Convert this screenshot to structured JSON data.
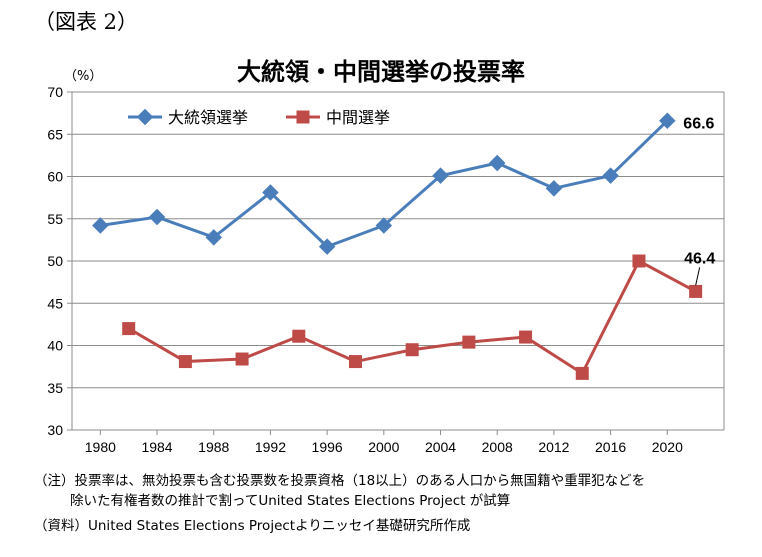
{
  "figure_label": "（図表 2）",
  "notes": {
    "line1": "（注）投票率は、無効投票も含む投票数を投票資格（18以上）のある人口から無国籍や重罪犯などを",
    "line2": "除いた有権者数の推計で割ってUnited States Elections Project が試算",
    "source": "（資料）United States Elections Projectよりニッセイ基礎研究所作成"
  },
  "chart_data": {
    "type": "line",
    "title": "大統領・中間選挙の投票率",
    "ylabel": "（%）",
    "xlabel": "",
    "xlim": [
      1978,
      2024
    ],
    "ylim": [
      30,
      70
    ],
    "x_ticks": [
      1980,
      1984,
      1988,
      1992,
      1996,
      2000,
      2004,
      2008,
      2012,
      2016,
      2020
    ],
    "y_ticks": [
      30,
      35,
      40,
      45,
      50,
      55,
      60,
      65,
      70
    ],
    "grid": true,
    "legend_position": "top-left",
    "series": [
      {
        "name": "大統領選挙",
        "color": "#4a7ebb",
        "marker": "diamond",
        "x": [
          1980,
          1984,
          1988,
          1992,
          1996,
          2000,
          2004,
          2008,
          2012,
          2016,
          2020
        ],
        "values": [
          54.2,
          55.2,
          52.8,
          58.1,
          51.7,
          54.2,
          60.1,
          61.6,
          58.6,
          60.1,
          66.6
        ]
      },
      {
        "name": "中間選挙",
        "color": "#be4b48",
        "marker": "square",
        "x": [
          1982,
          1986,
          1990,
          1994,
          1998,
          2002,
          2006,
          2010,
          2014,
          2018,
          2022
        ],
        "values": [
          42.0,
          38.1,
          38.4,
          41.1,
          38.1,
          39.5,
          40.4,
          41.0,
          36.7,
          50.0,
          46.4
        ]
      }
    ],
    "annotations": [
      {
        "label": "66.6",
        "series": 0,
        "x": 2020
      },
      {
        "label": "46.4",
        "series": 1,
        "x": 2022
      }
    ]
  }
}
